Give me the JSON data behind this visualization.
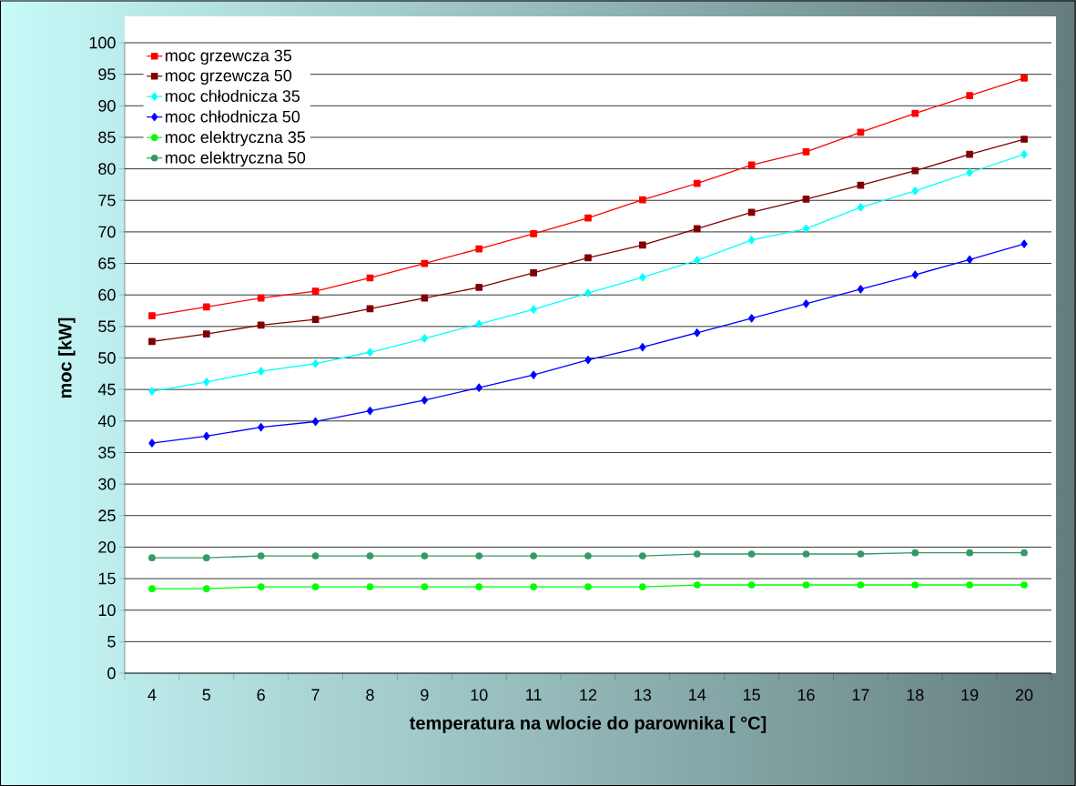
{
  "chart_data": {
    "type": "line",
    "xlabel": "temperatura na wlocie do parownika [ °C]",
    "ylabel": "moc [kW]",
    "categories": [
      "4",
      "5",
      "6",
      "7",
      "8",
      "9",
      "10",
      "11",
      "12",
      "13",
      "14",
      "15",
      "16",
      "17",
      "18",
      "19",
      "20"
    ],
    "ylim": [
      0,
      100
    ],
    "yticks": [
      0,
      5,
      10,
      15,
      20,
      25,
      30,
      35,
      40,
      45,
      50,
      55,
      60,
      65,
      70,
      75,
      80,
      85,
      90,
      95,
      100
    ],
    "grid": "y",
    "legend": "top left",
    "line_style": "solid",
    "series": [
      {
        "name": "moc grzewcza 35",
        "color": "#ff0000",
        "marker": "square",
        "values": [
          56.7,
          58.1,
          59.5,
          60.6,
          62.7,
          65.0,
          67.3,
          69.7,
          72.2,
          75.1,
          77.7,
          80.6,
          82.7,
          85.8,
          88.8,
          91.6,
          94.4
        ]
      },
      {
        "name": "moc grzewcza 50",
        "color": "#800000",
        "marker": "square",
        "values": [
          52.6,
          53.8,
          55.2,
          56.1,
          57.8,
          59.5,
          61.2,
          63.5,
          65.9,
          67.9,
          70.5,
          73.1,
          75.2,
          77.4,
          79.7,
          82.3,
          84.7
        ]
      },
      {
        "name": "moc chłodnicza 35",
        "color": "#00ffff",
        "marker": "diamond",
        "values": [
          44.7,
          46.2,
          47.9,
          49.1,
          50.9,
          53.1,
          55.4,
          57.7,
          60.3,
          62.8,
          65.5,
          68.7,
          70.5,
          73.9,
          76.5,
          79.4,
          82.3
        ]
      },
      {
        "name": "moc chłodnicza 50",
        "color": "#0000ff",
        "marker": "diamond",
        "values": [
          36.5,
          37.6,
          39.0,
          39.9,
          41.6,
          43.3,
          45.3,
          47.3,
          49.7,
          51.7,
          54.0,
          56.3,
          58.6,
          60.9,
          63.2,
          65.6,
          68.1
        ]
      },
      {
        "name": "moc elektryczna 35",
        "color": "#00ff00",
        "marker": "circle",
        "values": [
          13.4,
          13.4,
          13.7,
          13.7,
          13.7,
          13.7,
          13.7,
          13.7,
          13.7,
          13.7,
          14.0,
          14.0,
          14.0,
          14.0,
          14.0,
          14.0,
          14.0
        ]
      },
      {
        "name": "moc elektryczna 50",
        "color": "#339966",
        "marker": "circle",
        "values": [
          18.3,
          18.3,
          18.6,
          18.6,
          18.6,
          18.6,
          18.6,
          18.6,
          18.6,
          18.6,
          18.9,
          18.9,
          18.9,
          18.9,
          19.1,
          19.1,
          19.1
        ]
      }
    ]
  }
}
